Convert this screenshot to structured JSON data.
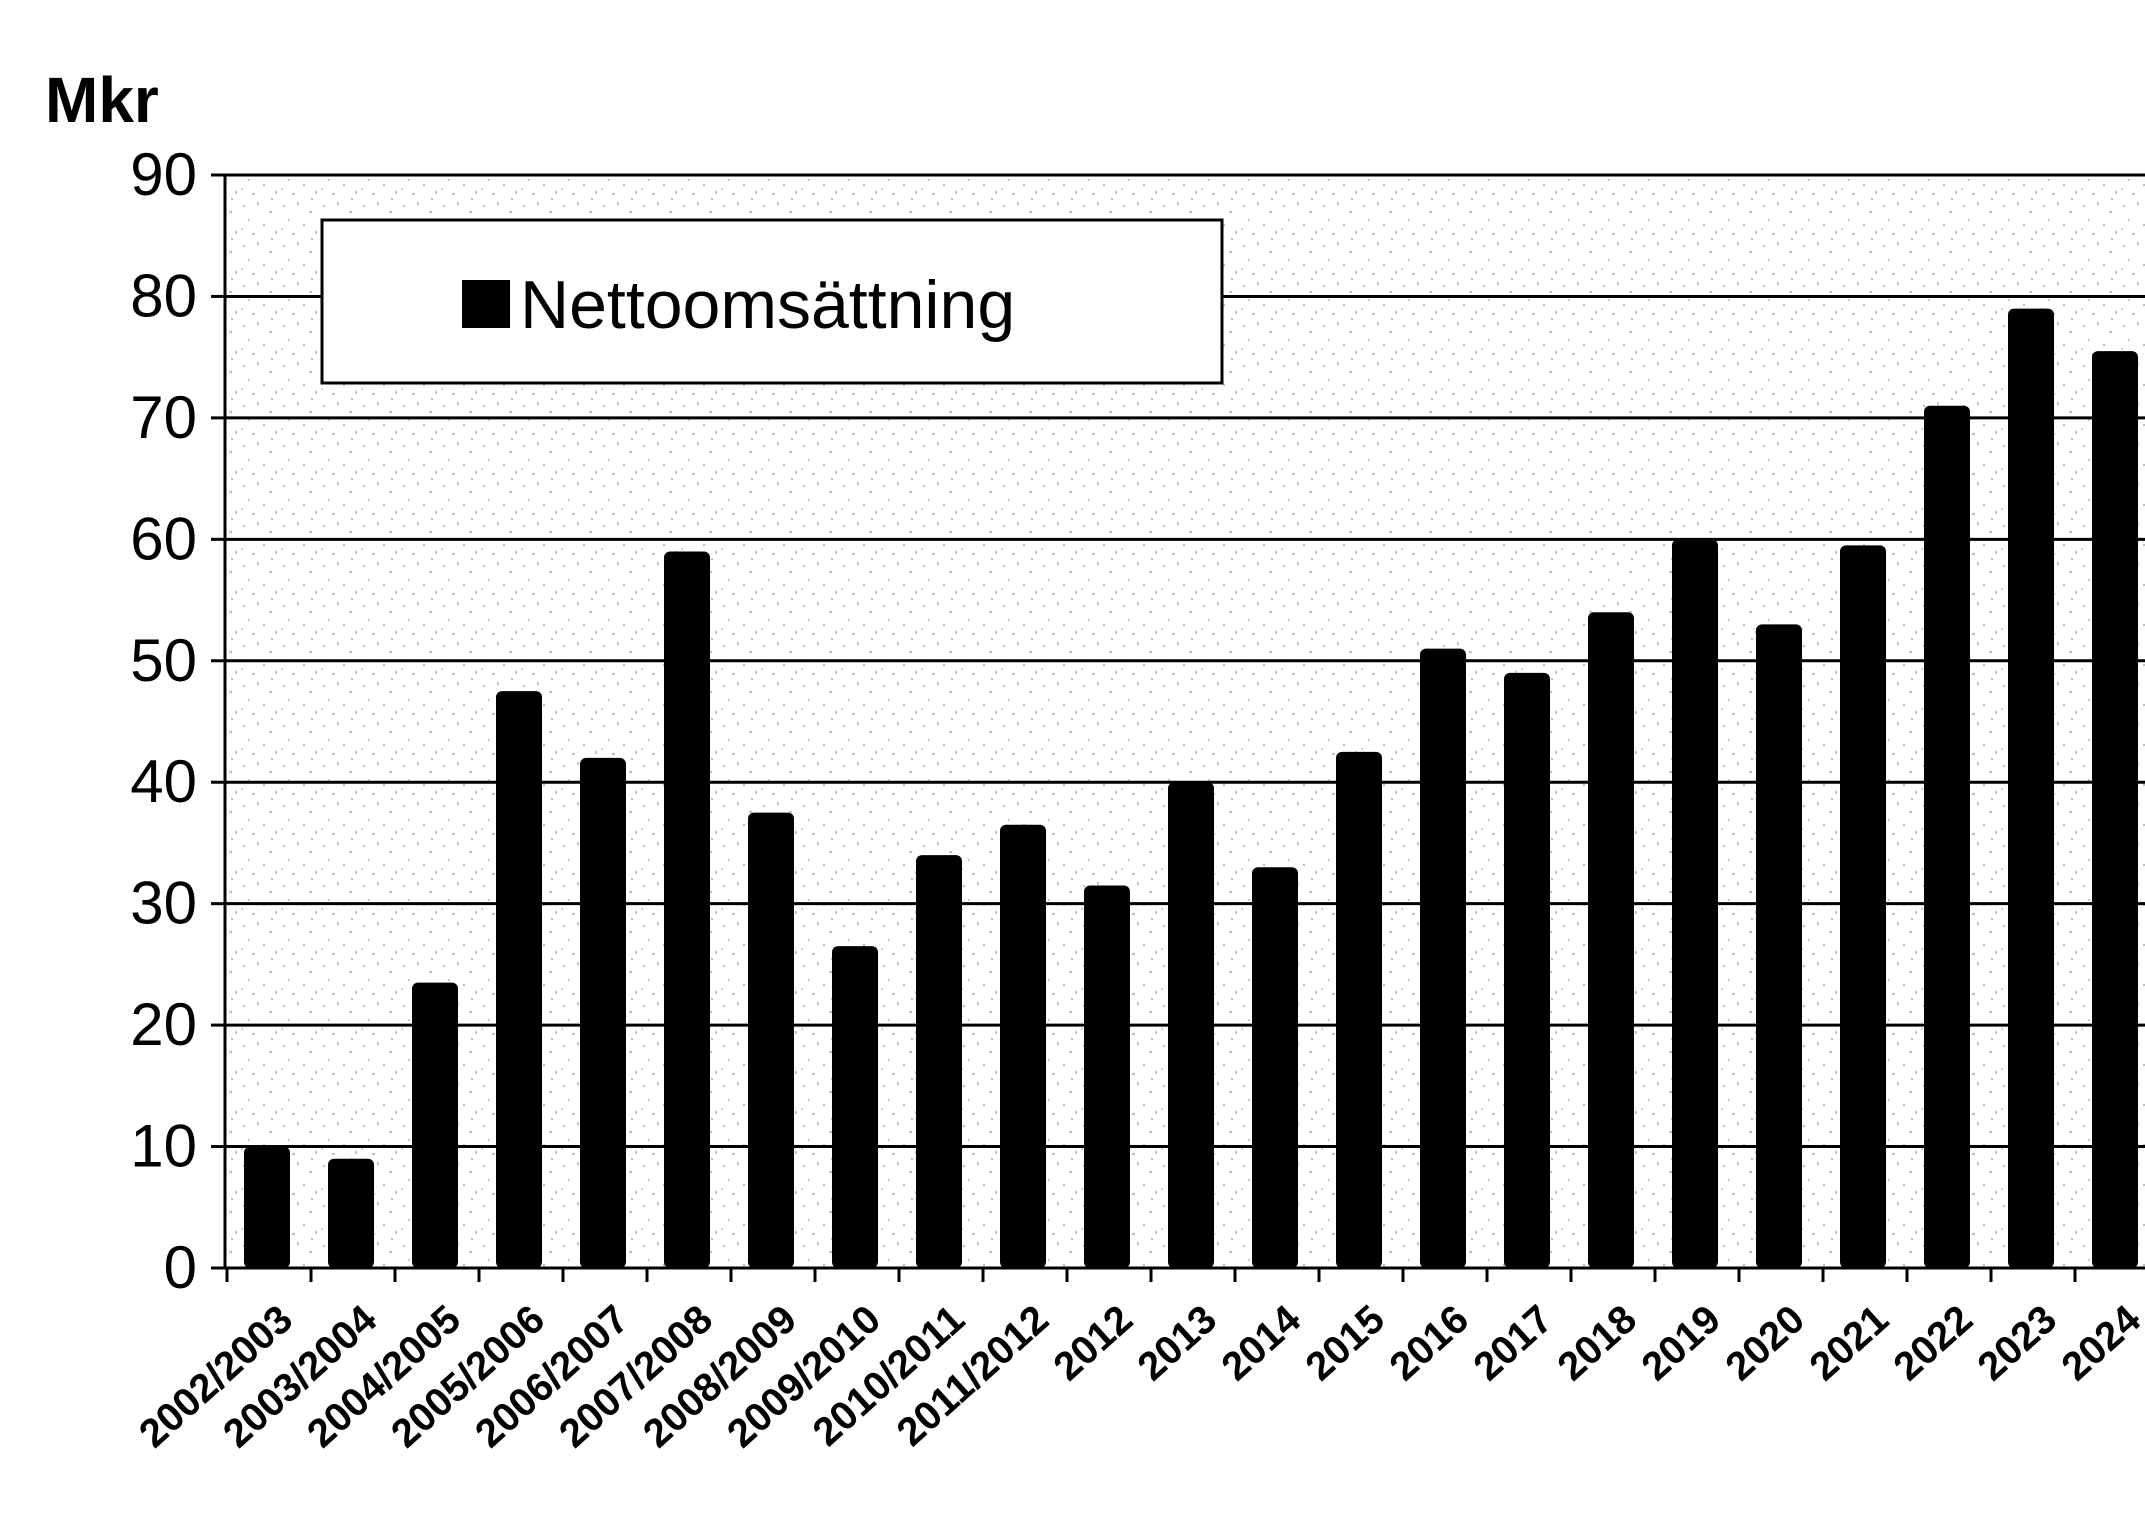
{
  "chart_data": {
    "type": "bar",
    "title": "",
    "ylabel": "Mkr",
    "xlabel": "",
    "ylim": [
      0,
      90
    ],
    "yticks": [
      0,
      10,
      20,
      30,
      40,
      50,
      60,
      70,
      80,
      90
    ],
    "grid": true,
    "legend_position": "top-left",
    "categories": [
      "2002/2003",
      "2003/2004",
      "2004/2005",
      "2005/2006",
      "2006/2007",
      "2007/2008",
      "2008/2009",
      "2009/2010",
      "2010/2011",
      "2011/2012",
      "2012",
      "2013",
      "2014",
      "2015",
      "2016",
      "2017",
      "2018",
      "2019",
      "2020",
      "2021",
      "2022",
      "2023",
      "2024"
    ],
    "series": [
      {
        "name": "Nettoomsättning",
        "values": [
          10,
          9,
          23.5,
          47.5,
          42,
          59,
          37.5,
          26.5,
          34,
          36.5,
          31.5,
          40,
          33,
          42.5,
          51,
          49,
          54,
          60,
          53,
          59.5,
          71,
          79,
          75.5
        ]
      }
    ],
    "colors": {
      "bar": "#000000",
      "gridline": "#000000",
      "background": "#ffffff",
      "stipple": "#8a8a8a"
    }
  }
}
